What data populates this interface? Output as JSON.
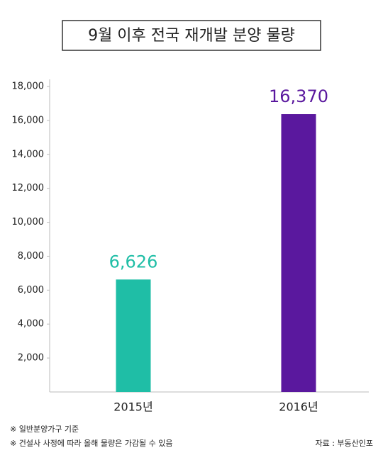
{
  "chart_data": {
    "type": "bar",
    "title": "9월 이후 전국 재개발 분양 물량",
    "categories": [
      "2015년",
      "2016년"
    ],
    "values": [
      6626,
      16370
    ],
    "value_labels": [
      "6,626",
      "16,370"
    ],
    "colors": [
      "#1fbea6",
      "#5a189e"
    ],
    "ylim": [
      0,
      18000
    ],
    "yticks": [
      {
        "value": 2000,
        "label": "2,000"
      },
      {
        "value": 4000,
        "label": "4,000"
      },
      {
        "value": 6000,
        "label": "6,000"
      },
      {
        "value": 8000,
        "label": "8,000"
      },
      {
        "value": 10000,
        "label": "10,000"
      },
      {
        "value": 12000,
        "label": "12,000"
      },
      {
        "value": 14000,
        "label": "14,000"
      },
      {
        "value": 16000,
        "label": "16,000"
      },
      {
        "value": 18000,
        "label": "18,000"
      }
    ],
    "notes": [
      "※ 일반분양가구 기준",
      "※ 건설사 사정에 따라 올해 물량은 가감될 수 있음"
    ],
    "source": "자료 : 부동산인포"
  }
}
